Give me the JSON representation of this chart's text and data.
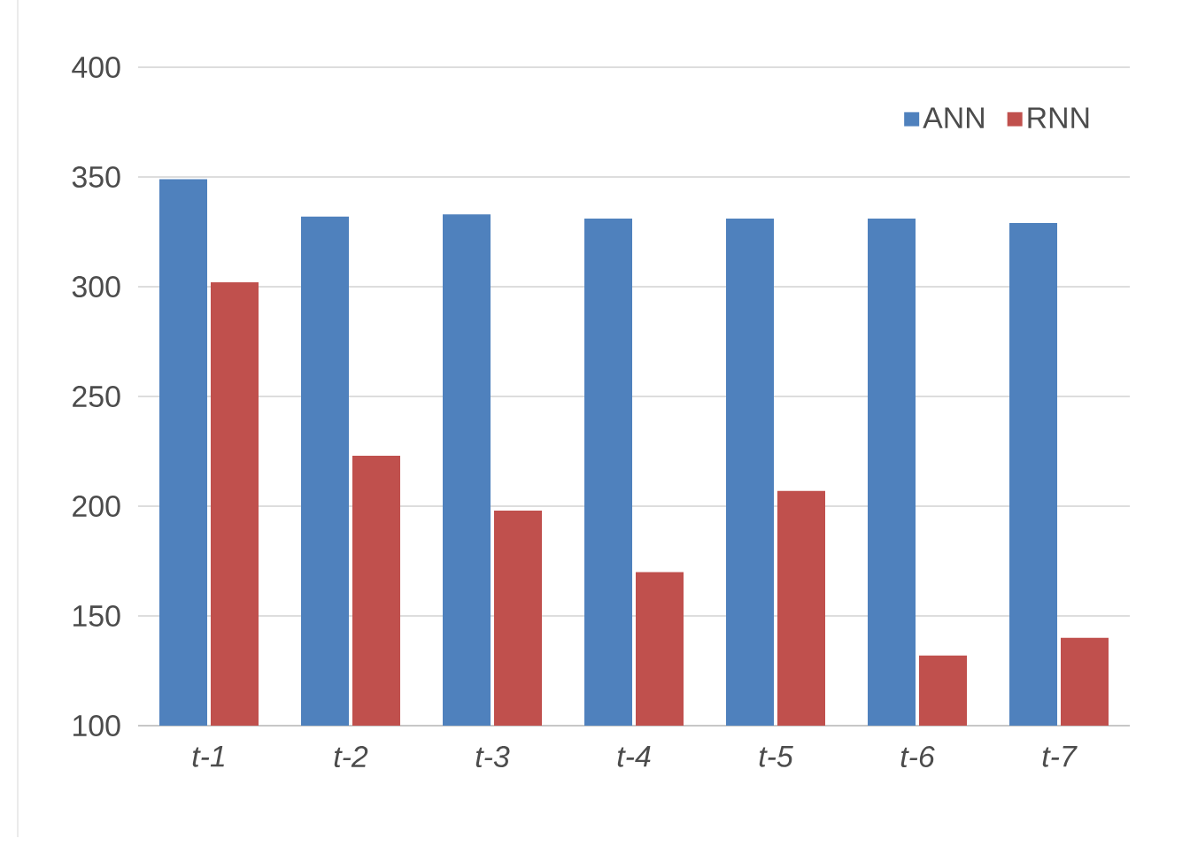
{
  "chart_data": {
    "type": "bar",
    "categories": [
      "t-1",
      "t-2",
      "t-3",
      "t-4",
      "t-5",
      "t-6",
      "t-7"
    ],
    "series": [
      {
        "name": "ANN",
        "color": "#4f81bd",
        "values": [
          349,
          332,
          333,
          331,
          331,
          331,
          329
        ]
      },
      {
        "name": "RNN",
        "color": "#c0504d",
        "values": [
          302,
          223,
          198,
          170,
          207,
          132,
          140
        ]
      }
    ],
    "ylim": [
      100,
      400
    ],
    "yticks": [
      100,
      150,
      200,
      250,
      300,
      350,
      400
    ],
    "grid": "y",
    "legend": "top right"
  }
}
